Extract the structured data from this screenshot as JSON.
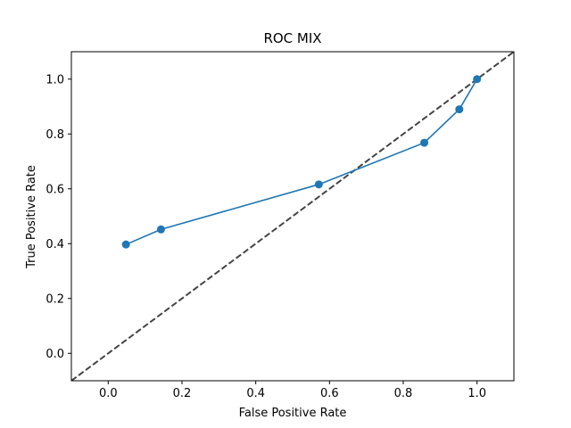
{
  "chart_data": {
    "type": "line",
    "title": "ROC MIX",
    "xlabel": "False Positive Rate",
    "ylabel": "True Positive Rate",
    "xlim": [
      -0.1,
      1.1
    ],
    "ylim": [
      -0.1,
      1.1
    ],
    "xticks": [
      0.0,
      0.2,
      0.4,
      0.6,
      0.8,
      1.0
    ],
    "yticks": [
      0.0,
      0.2,
      0.4,
      0.6,
      0.8,
      1.0
    ],
    "xtick_labels": [
      "0.0",
      "0.2",
      "0.4",
      "0.6",
      "0.8",
      "1.0"
    ],
    "ytick_labels": [
      "0.0",
      "0.2",
      "0.4",
      "0.6",
      "0.8",
      "1.0"
    ],
    "grid": false,
    "series": [
      {
        "color": "#1f77b4",
        "marker": "circle",
        "x": [
          0.048,
          0.143,
          0.571,
          0.857,
          0.952,
          1.0
        ],
        "y": [
          0.397,
          0.452,
          0.616,
          0.768,
          0.89,
          1.0
        ]
      }
    ],
    "reference_line": {
      "color": "#444444",
      "style": "dashed",
      "x": [
        -0.1,
        1.1
      ],
      "y": [
        -0.1,
        1.1
      ]
    }
  }
}
